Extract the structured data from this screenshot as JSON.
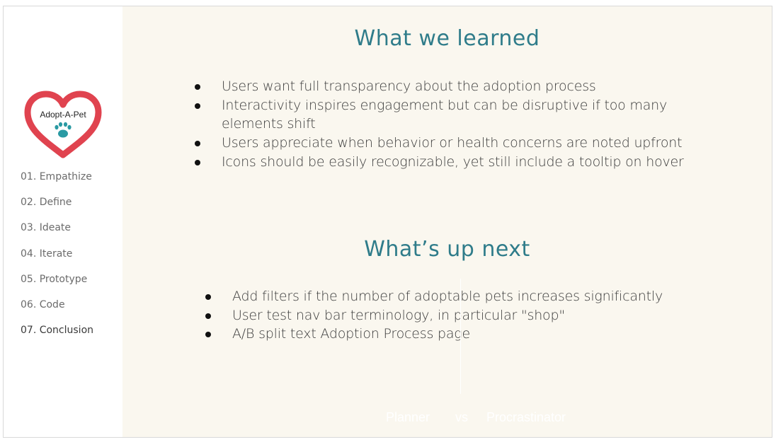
{
  "logo": {
    "text": "Adopt-A-Pet",
    "heart_color": "#e0434f",
    "paw_color": "#2a9aa3"
  },
  "nav": {
    "items": [
      {
        "label": "01. Empathize"
      },
      {
        "label": "02. Define"
      },
      {
        "label": "03. Ideate"
      },
      {
        "label": "04. Iterate"
      },
      {
        "label": "05. Prototype"
      },
      {
        "label": "06. Code"
      },
      {
        "label": "07. Conclusion"
      }
    ],
    "active_index": 6
  },
  "learned": {
    "title": "What we learned",
    "items": [
      "Users want full transparency about the adoption process",
      "Interactivity inspires engagement but can be disruptive if too many elements shift",
      "Users appreciate when behavior or health concerns are noted upfront",
      "Icons should be easily recognizable, yet still include a tooltip on hover"
    ]
  },
  "next": {
    "title": "What’s up next",
    "items": [
      "Add filters if the number of adoptable pets increases significantly",
      "User test nav bar terminology, in particular \"shop\"",
      "A/B split text Adoption Process page"
    ]
  },
  "faint_footer": {
    "left": "Planner",
    "middle": "vs",
    "right": "Procrastinator"
  },
  "colors": {
    "accent": "#2f7c8a",
    "background": "#faf7ef"
  }
}
